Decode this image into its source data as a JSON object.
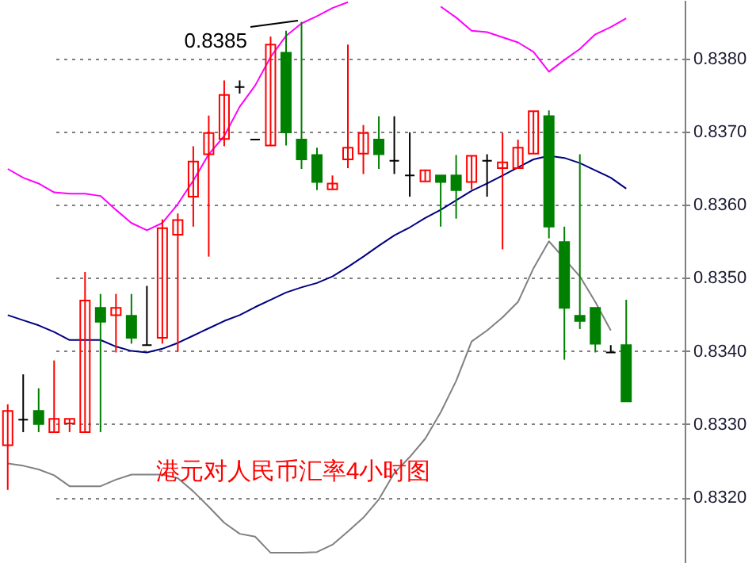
{
  "chart_data": {
    "type": "candlestick",
    "categories": [
      null,
      null,
      null,
      null,
      null,
      null,
      null,
      null,
      null,
      null,
      null,
      null,
      null,
      null,
      null,
      null,
      null,
      null,
      null,
      null,
      null,
      null,
      null,
      null,
      null,
      null,
      null,
      null,
      null,
      null,
      null,
      null,
      null,
      null,
      null,
      null,
      null,
      null,
      null,
      null,
      null
    ],
    "ohlc": [
      [
        0.83271,
        0.83327,
        0.8321,
        0.83318
      ],
      [
        0.83306,
        0.83368,
        0.83289,
        0.83306
      ],
      [
        0.83318,
        0.83349,
        0.83289,
        0.833
      ],
      [
        0.83289,
        0.83387,
        0.83289,
        0.83307
      ],
      [
        0.83301,
        0.83307,
        0.83289,
        0.83307
      ],
      [
        0.83289,
        0.83508,
        0.83289,
        0.83469
      ],
      [
        0.83459,
        0.83478,
        0.83289,
        0.8344
      ],
      [
        0.83449,
        0.83478,
        0.83398,
        0.83459
      ],
      [
        0.83448,
        0.83478,
        0.8341,
        0.83418
      ],
      [
        0.83408,
        0.83489,
        0.83408,
        0.83408
      ],
      [
        0.83418,
        0.8358,
        0.8341,
        0.83568
      ],
      [
        0.83559,
        0.83588,
        0.83399,
        0.83579
      ],
      [
        0.83611,
        0.8368,
        0.8357,
        0.83659
      ],
      [
        0.83669,
        0.83722,
        0.83529,
        0.83698
      ],
      [
        0.8369,
        0.8377,
        0.8368,
        0.8375
      ],
      [
        0.83761,
        0.8377,
        0.83752,
        0.83761
      ],
      [
        0.83689,
        0.83689,
        0.83689,
        0.83689
      ],
      [
        0.83681,
        0.8383,
        0.83681,
        0.83819
      ],
      [
        0.83808,
        0.83838,
        0.83681,
        0.83699
      ],
      [
        0.83689,
        0.8385,
        0.83649,
        0.83662
      ],
      [
        0.83668,
        0.83678,
        0.8362,
        0.83631
      ],
      [
        0.83621,
        0.8364,
        0.83621,
        0.83629
      ],
      [
        0.83662,
        0.83819,
        0.8365,
        0.83678
      ],
      [
        0.8367,
        0.83709,
        0.83642,
        0.83698
      ],
      [
        0.83689,
        0.83721,
        0.83649,
        0.83669
      ],
      [
        0.8366,
        0.83721,
        0.83642,
        0.8366
      ],
      [
        0.8364,
        0.83699,
        0.83611,
        0.8364
      ],
      [
        0.83632,
        0.83647,
        0.83632,
        0.83647
      ],
      [
        0.8364,
        0.8364,
        0.8357,
        0.83631
      ],
      [
        0.8364,
        0.83668,
        0.83581,
        0.8362
      ],
      [
        0.83631,
        0.83667,
        0.83621,
        0.83667
      ],
      [
        0.8366,
        0.83669,
        0.83611,
        0.8366
      ],
      [
        0.8365,
        0.83698,
        0.83539,
        0.83658
      ],
      [
        0.8365,
        0.83689,
        0.8365,
        0.83678
      ],
      [
        0.8367,
        0.83728,
        0.8367,
        0.83728
      ],
      [
        0.83721,
        0.83729,
        0.83554,
        0.8357
      ],
      [
        0.83549,
        0.8357,
        0.83388,
        0.83459
      ],
      [
        0.83448,
        0.83669,
        0.8343,
        0.83441
      ],
      [
        0.83459,
        0.83459,
        0.83398,
        0.8341
      ],
      [
        0.83398,
        0.83408,
        0.83398,
        0.83398
      ],
      [
        0.83408,
        0.8347,
        0.83331,
        0.83331
      ]
    ],
    "colors": [
      "#ff0000",
      "#000000",
      "#008000",
      "#ff0000",
      "#ff0000",
      "#ff0000",
      "#008000",
      "#ff0000",
      "#008000",
      "#000000",
      "#ff0000",
      "#ff0000",
      "#ff0000",
      "#ff0000",
      "#ff0000",
      "#000000",
      "#000000",
      "#ff0000",
      "#008000",
      "#008000",
      "#008000",
      "#ff0000",
      "#ff0000",
      "#ff0000",
      "#008000",
      "#000000",
      "#000000",
      "#ff0000",
      "#008000",
      "#008000",
      "#ff0000",
      "#000000",
      "#ff0000",
      "#ff0000",
      "#ff0000",
      "#008000",
      "#008000",
      "#008000",
      "#008000",
      "#000000",
      "#008000"
    ],
    "series": [
      {
        "type": "line",
        "color": "#ff00ff",
        "values": [
          0.83649,
          0.83637,
          0.83629,
          0.83617,
          0.83615,
          0.83615,
          0.83612,
          0.83593,
          0.83575,
          0.83565,
          0.83575,
          0.83601,
          0.83633,
          0.83669,
          0.83694,
          0.83734,
          0.83763,
          0.83802,
          0.83831,
          0.83848,
          0.83858,
          0.83869,
          0.83877,
          null,
          null,
          null,
          null,
          null,
          0.83871,
          0.83856,
          0.83838,
          0.83836,
          0.83829,
          0.83822,
          0.83809,
          0.83782,
          0.83798,
          0.83813,
          0.83833,
          0.83843,
          0.83855
        ]
      },
      {
        "type": "line",
        "color": "#000080",
        "values": [
          0.83449,
          0.83442,
          0.83435,
          0.83426,
          0.83415,
          0.83415,
          0.83415,
          0.83406,
          0.834,
          0.83398,
          0.83403,
          0.83411,
          0.83421,
          0.83431,
          0.83441,
          0.83449,
          0.8346,
          0.8347,
          0.8348,
          0.83487,
          0.83493,
          0.83502,
          0.83515,
          0.83529,
          0.83544,
          0.83558,
          0.83569,
          0.83582,
          0.83593,
          0.83606,
          0.83619,
          0.83629,
          0.8364,
          0.83651,
          0.83662,
          0.83667,
          0.83664,
          0.83657,
          0.83647,
          0.83637,
          0.83622
        ]
      },
      {
        "type": "line",
        "color": "#808080",
        "values": [
          0.83246,
          0.83243,
          0.83238,
          0.8323,
          0.83215,
          0.83215,
          0.83215,
          0.83224,
          0.83231,
          0.83231,
          0.83231,
          0.83226,
          0.83208,
          0.83187,
          0.83165,
          0.8315,
          0.83146,
          0.83124,
          0.83124,
          0.83124,
          0.83125,
          0.83135,
          0.83153,
          0.83172,
          0.83197,
          0.83233,
          0.83255,
          0.8328,
          0.83316,
          0.83359,
          0.83413,
          0.83428,
          0.83446,
          0.83467,
          0.83513,
          0.8355,
          0.83526,
          0.83502,
          0.83467,
          0.83428,
          null
        ]
      }
    ],
    "ylim": [
      0.8311,
      0.8388
    ],
    "yticks": [
      {
        "value": 0.832,
        "label": "0.8320"
      },
      {
        "value": 0.833,
        "label": "0.8330"
      },
      {
        "value": 0.834,
        "label": "0.8340"
      },
      {
        "value": 0.835,
        "label": "0.8350"
      },
      {
        "value": 0.836,
        "label": "0.8360"
      },
      {
        "value": 0.837,
        "label": "0.8370"
      },
      {
        "value": 0.838,
        "label": "0.8380"
      }
    ],
    "grid": "y",
    "tick_labels": "y",
    "annotations": [
      "0.8385",
      "港元对人民币汇率4小时图"
    ]
  }
}
